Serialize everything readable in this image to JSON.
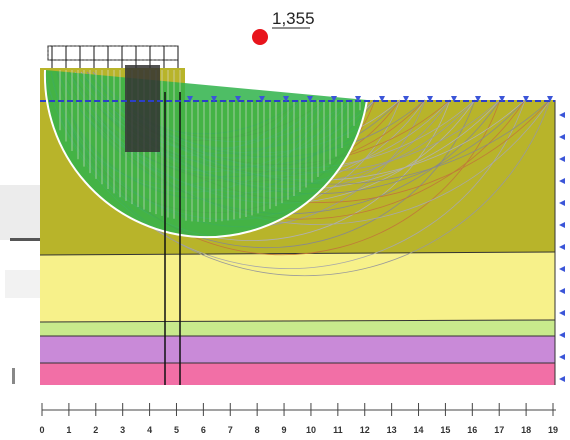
{
  "factor_of_safety": "1,355",
  "ruler": {
    "ticks": [
      0,
      1,
      2,
      3,
      4,
      5,
      6,
      7,
      8,
      9,
      10,
      11,
      12,
      13,
      14,
      15,
      16,
      17,
      18,
      19
    ]
  }
}
